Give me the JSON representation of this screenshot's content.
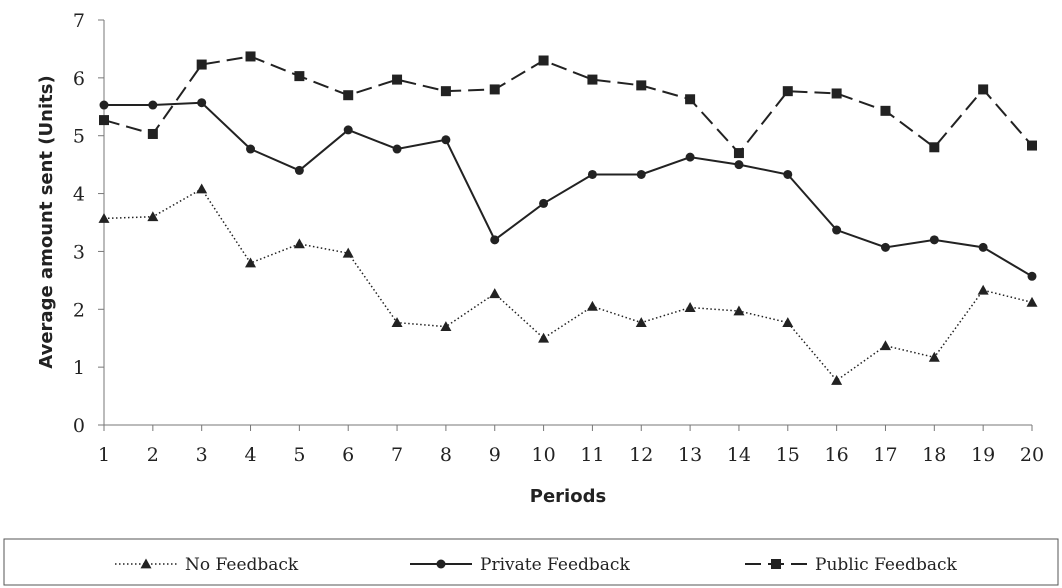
{
  "chart_data": {
    "type": "line",
    "title": "",
    "xlabel": "Periods",
    "ylabel": "Average amount sent (Units)",
    "ylim": [
      0,
      7
    ],
    "yticks": [
      0,
      1,
      2,
      3,
      4,
      5,
      6,
      7
    ],
    "grid": false,
    "legend_position": "bottom",
    "x": [
      1,
      2,
      3,
      4,
      5,
      6,
      7,
      8,
      9,
      10,
      11,
      12,
      13,
      14,
      15,
      16,
      17,
      18,
      19,
      20
    ],
    "series": [
      {
        "name": "No Feedback",
        "line_style": "dotted",
        "marker": "triangle",
        "color": "#222222",
        "values": [
          3.57,
          3.6,
          4.08,
          2.8,
          3.13,
          2.97,
          1.77,
          1.7,
          2.27,
          1.5,
          2.05,
          1.77,
          2.03,
          1.97,
          1.77,
          0.77,
          1.37,
          1.17,
          2.33,
          2.12
        ]
      },
      {
        "name": "Private Feedback",
        "line_style": "solid",
        "marker": "circle",
        "color": "#222222",
        "values": [
          5.53,
          5.53,
          5.57,
          4.77,
          4.4,
          5.1,
          4.77,
          4.93,
          3.2,
          3.83,
          4.33,
          4.33,
          4.63,
          4.5,
          4.33,
          3.37,
          3.07,
          3.2,
          3.07,
          2.57
        ]
      },
      {
        "name": "Public Feedback",
        "line_style": "dashed",
        "marker": "square",
        "color": "#222222",
        "values": [
          5.27,
          5.03,
          6.23,
          6.37,
          6.03,
          5.7,
          5.97,
          5.77,
          5.8,
          6.3,
          5.97,
          5.87,
          5.63,
          4.7,
          5.77,
          5.73,
          5.43,
          4.8,
          5.8,
          4.83
        ]
      }
    ]
  }
}
